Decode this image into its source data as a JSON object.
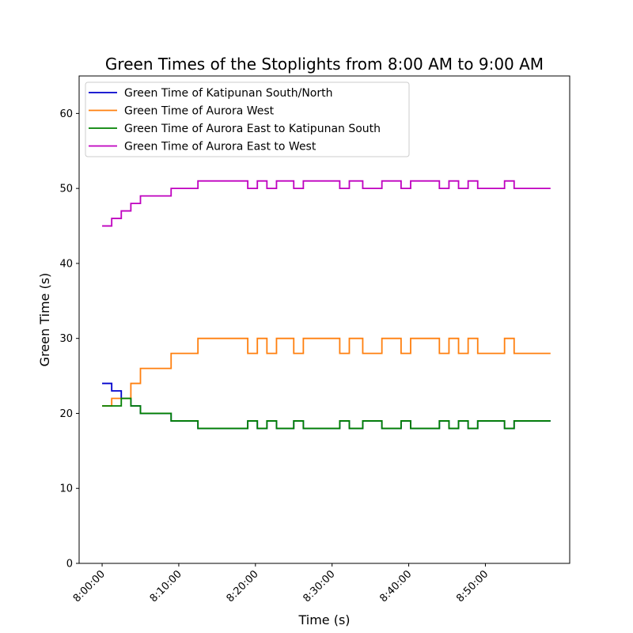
{
  "chart_data": {
    "type": "line",
    "step": true,
    "title": "Green Times of the Stoplights from 8:00 AM to 9:00 AM",
    "xlabel": "Time (s)",
    "ylabel": "Green Time (s)",
    "xlim": [
      "7:57:00",
      "9:01:00"
    ],
    "ylim": [
      0,
      65
    ],
    "x_ticks": [
      "8:00:00",
      "8:10:00",
      "8:20:00",
      "8:30:00",
      "8:40:00",
      "8:50:00"
    ],
    "y_ticks": [
      0,
      10,
      20,
      30,
      40,
      50,
      60
    ],
    "grid": false,
    "legend_position": "upper-left",
    "series": [
      {
        "name": "Green Time of Katipunan South/North",
        "color": "#0000cc",
        "points": [
          [
            "8:00:00",
            24
          ],
          [
            "8:01:15",
            23
          ],
          [
            "8:02:30",
            22
          ],
          [
            "8:03:45",
            21
          ],
          [
            "8:05:00",
            20
          ],
          [
            "8:09:00",
            19
          ],
          [
            "8:12:30",
            18
          ],
          [
            "8:19:00",
            19
          ],
          [
            "8:20:15",
            18
          ],
          [
            "8:21:30",
            19
          ],
          [
            "8:22:45",
            18
          ],
          [
            "8:25:00",
            19
          ],
          [
            "8:26:15",
            18
          ],
          [
            "8:31:00",
            19
          ],
          [
            "8:32:15",
            18
          ],
          [
            "8:34:00",
            19
          ],
          [
            "8:36:30",
            18
          ],
          [
            "8:39:00",
            19
          ],
          [
            "8:40:15",
            18
          ],
          [
            "8:44:00",
            19
          ],
          [
            "8:45:15",
            18
          ],
          [
            "8:46:30",
            19
          ],
          [
            "8:47:45",
            18
          ],
          [
            "8:49:00",
            19
          ],
          [
            "8:52:30",
            18
          ],
          [
            "8:53:45",
            19
          ],
          [
            "8:58:30",
            19
          ]
        ]
      },
      {
        "name": "Green Time of Aurora West",
        "color": "#ff7f0e",
        "points": [
          [
            "8:00:00",
            21
          ],
          [
            "8:01:15",
            22
          ],
          [
            "8:02:30",
            22
          ],
          [
            "8:03:45",
            24
          ],
          [
            "8:05:00",
            26
          ],
          [
            "8:09:00",
            28
          ],
          [
            "8:12:30",
            30
          ],
          [
            "8:19:00",
            28
          ],
          [
            "8:20:15",
            30
          ],
          [
            "8:21:30",
            28
          ],
          [
            "8:22:45",
            30
          ],
          [
            "8:25:00",
            28
          ],
          [
            "8:26:15",
            30
          ],
          [
            "8:31:00",
            28
          ],
          [
            "8:32:15",
            30
          ],
          [
            "8:34:00",
            28
          ],
          [
            "8:36:30",
            30
          ],
          [
            "8:39:00",
            28
          ],
          [
            "8:40:15",
            30
          ],
          [
            "8:44:00",
            28
          ],
          [
            "8:45:15",
            30
          ],
          [
            "8:46:30",
            28
          ],
          [
            "8:47:45",
            30
          ],
          [
            "8:49:00",
            28
          ],
          [
            "8:52:30",
            30
          ],
          [
            "8:53:45",
            28
          ],
          [
            "8:58:30",
            28
          ]
        ]
      },
      {
        "name": "Green Time of Aurora East to Katipunan South",
        "color": "#008000",
        "points": [
          [
            "8:00:00",
            21
          ],
          [
            "8:01:15",
            21
          ],
          [
            "8:02:30",
            22
          ],
          [
            "8:03:45",
            21
          ],
          [
            "8:05:00",
            20
          ],
          [
            "8:09:00",
            19
          ],
          [
            "8:12:30",
            18
          ],
          [
            "8:19:00",
            19
          ],
          [
            "8:20:15",
            18
          ],
          [
            "8:21:30",
            19
          ],
          [
            "8:22:45",
            18
          ],
          [
            "8:25:00",
            19
          ],
          [
            "8:26:15",
            18
          ],
          [
            "8:31:00",
            19
          ],
          [
            "8:32:15",
            18
          ],
          [
            "8:34:00",
            19
          ],
          [
            "8:36:30",
            18
          ],
          [
            "8:39:00",
            19
          ],
          [
            "8:40:15",
            18
          ],
          [
            "8:44:00",
            19
          ],
          [
            "8:45:15",
            18
          ],
          [
            "8:46:30",
            19
          ],
          [
            "8:47:45",
            18
          ],
          [
            "8:49:00",
            19
          ],
          [
            "8:52:30",
            18
          ],
          [
            "8:53:45",
            19
          ],
          [
            "8:58:30",
            19
          ]
        ]
      },
      {
        "name": "Green Time of Aurora East to West",
        "color": "#bf00bf",
        "points": [
          [
            "8:00:00",
            45
          ],
          [
            "8:01:15",
            46
          ],
          [
            "8:02:30",
            47
          ],
          [
            "8:03:45",
            48
          ],
          [
            "8:05:00",
            49
          ],
          [
            "8:09:00",
            50
          ],
          [
            "8:12:30",
            51
          ],
          [
            "8:19:00",
            50
          ],
          [
            "8:20:15",
            51
          ],
          [
            "8:21:30",
            50
          ],
          [
            "8:22:45",
            51
          ],
          [
            "8:25:00",
            50
          ],
          [
            "8:26:15",
            51
          ],
          [
            "8:31:00",
            50
          ],
          [
            "8:32:15",
            51
          ],
          [
            "8:34:00",
            50
          ],
          [
            "8:36:30",
            51
          ],
          [
            "8:39:00",
            50
          ],
          [
            "8:40:15",
            51
          ],
          [
            "8:44:00",
            50
          ],
          [
            "8:45:15",
            51
          ],
          [
            "8:46:30",
            50
          ],
          [
            "8:47:45",
            51
          ],
          [
            "8:49:00",
            50
          ],
          [
            "8:52:30",
            51
          ],
          [
            "8:53:45",
            50
          ],
          [
            "8:58:30",
            50
          ]
        ]
      }
    ]
  }
}
